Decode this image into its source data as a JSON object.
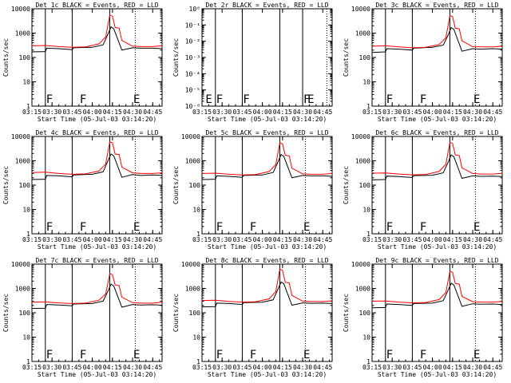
{
  "figure": {
    "x_tick_labels": [
      "03:15",
      "03:30",
      "03:45",
      "04:00",
      "04:15",
      "04:30",
      "04:45"
    ],
    "x_tick_minutes": [
      195,
      210,
      225,
      240,
      255,
      270,
      285
    ],
    "xlim_minutes": [
      195,
      292
    ],
    "xlabel": "Start Time (05-Jul-03 03:14:20)",
    "ylabel": "Counts/sec",
    "black_series_name": "Events",
    "red_series_name": "LLD",
    "colors": {
      "events": "#000000",
      "lld": "#ff0000",
      "axis": "#000000"
    }
  },
  "chart_data": [
    {
      "type": "line",
      "title": "Det 1c BLACK = Events, RED = LLD",
      "yscale": "log",
      "ylim": [
        1,
        10000
      ],
      "y_tick_labels": [
        "1",
        "10",
        "100",
        "1000",
        "10000"
      ],
      "solid_markers": [
        205,
        225,
        253
      ],
      "dotted_markers": [
        272
      ],
      "flag_letters": [
        {
          "x": 205,
          "text": "F"
        },
        {
          "x": 230,
          "text": "F"
        },
        {
          "x": 270,
          "text": "E"
        }
      ],
      "series": [
        {
          "name": "Events",
          "x": [
            195,
            205,
            206,
            215,
            225,
            226,
            240,
            248,
            252,
            254,
            256,
            262,
            270,
            276,
            285,
            292
          ],
          "values": [
            170,
            175,
            240,
            230,
            210,
            250,
            260,
            330,
            1000,
            1800,
            1500,
            200,
            250,
            240,
            240,
            230
          ]
        },
        {
          "name": "LLD",
          "x": [
            195,
            205,
            215,
            225,
            235,
            245,
            250,
            253,
            255,
            257,
            260,
            262,
            270,
            276,
            285,
            292
          ],
          "values": [
            300,
            310,
            280,
            260,
            270,
            360,
            700,
            5500,
            5000,
            1700,
            1600,
            500,
            290,
            280,
            280,
            300
          ]
        }
      ]
    },
    {
      "type": "line",
      "title": "Det 2r BLACK = Events, RED = LLD",
      "yscale": "log",
      "ylim": [
        1e-06,
        1
      ],
      "y_tick_labels": [
        "10⁻⁶",
        "10⁻⁵",
        "10⁻⁴",
        "10⁻³",
        "10⁻²",
        "10⁻¹",
        "10⁰"
      ],
      "solid_markers": [
        205,
        225,
        253,
        270
      ],
      "dotted_markers": [
        288
      ],
      "flag_letters": [
        {
          "x": 197,
          "text": "E"
        },
        {
          "x": 205,
          "text": "F"
        },
        {
          "x": 225,
          "text": "F"
        },
        {
          "x": 270,
          "text": "F"
        },
        {
          "x": 273,
          "text": "E"
        }
      ],
      "series": []
    },
    {
      "type": "line",
      "title": "Det 3c BLACK = Events, RED = LLD",
      "yscale": "log",
      "ylim": [
        1,
        10000
      ],
      "y_tick_labels": [
        "1",
        "10",
        "100",
        "1000",
        "10000"
      ],
      "solid_markers": [
        205,
        225,
        253
      ],
      "dotted_markers": [
        272
      ],
      "flag_letters": [
        {
          "x": 205,
          "text": "F"
        },
        {
          "x": 230,
          "text": "F"
        },
        {
          "x": 270,
          "text": "E"
        }
      ],
      "series": [
        {
          "name": "Events",
          "x": [
            195,
            205,
            206,
            215,
            225,
            226,
            240,
            248,
            252,
            254,
            256,
            262,
            270,
            276,
            285,
            292
          ],
          "values": [
            160,
            170,
            230,
            220,
            200,
            240,
            260,
            320,
            900,
            1700,
            1400,
            180,
            230,
            220,
            230,
            220
          ]
        },
        {
          "name": "LLD",
          "x": [
            195,
            205,
            215,
            225,
            235,
            245,
            250,
            253,
            255,
            257,
            260,
            262,
            270,
            276,
            285,
            292
          ],
          "values": [
            290,
            300,
            270,
            250,
            260,
            340,
            650,
            5200,
            4800,
            1600,
            1500,
            480,
            280,
            270,
            270,
            290
          ]
        }
      ]
    },
    {
      "type": "line",
      "title": "Det 4c BLACK = Events, RED = LLD",
      "yscale": "log",
      "ylim": [
        1,
        10000
      ],
      "y_tick_labels": [
        "1",
        "10",
        "100",
        "1000",
        "10000"
      ],
      "solid_markers": [
        205,
        225,
        253
      ],
      "dotted_markers": [
        272
      ],
      "flag_letters": [
        {
          "x": 205,
          "text": "F"
        },
        {
          "x": 230,
          "text": "F"
        },
        {
          "x": 270,
          "text": "E"
        }
      ],
      "series": [
        {
          "name": "Events",
          "x": [
            195,
            205,
            206,
            215,
            225,
            226,
            240,
            248,
            252,
            254,
            256,
            262,
            270,
            276,
            285,
            292
          ],
          "values": [
            170,
            175,
            250,
            240,
            220,
            260,
            280,
            350,
            1100,
            1900,
            1600,
            210,
            270,
            250,
            260,
            250
          ]
        },
        {
          "name": "LLD",
          "x": [
            195,
            205,
            215,
            225,
            235,
            245,
            250,
            253,
            255,
            257,
            260,
            262,
            270,
            276,
            285,
            292
          ],
          "values": [
            330,
            340,
            300,
            280,
            290,
            380,
            750,
            6000,
            5500,
            1900,
            1800,
            550,
            320,
            300,
            300,
            320
          ]
        }
      ]
    },
    {
      "type": "line",
      "title": "Det 5c BLACK = Events, RED = LLD",
      "yscale": "log",
      "ylim": [
        1,
        10000
      ],
      "y_tick_labels": [
        "1",
        "10",
        "100",
        "1000",
        "10000"
      ],
      "solid_markers": [
        205,
        225,
        253
      ],
      "dotted_markers": [
        272
      ],
      "flag_letters": [
        {
          "x": 205,
          "text": "F"
        },
        {
          "x": 230,
          "text": "F"
        },
        {
          "x": 270,
          "text": "E"
        }
      ],
      "series": [
        {
          "name": "Events",
          "x": [
            195,
            205,
            206,
            215,
            225,
            226,
            240,
            248,
            252,
            254,
            256,
            262,
            270,
            276,
            285,
            292
          ],
          "values": [
            170,
            175,
            240,
            230,
            210,
            250,
            260,
            330,
            1000,
            1800,
            1500,
            200,
            250,
            240,
            240,
            230
          ]
        },
        {
          "name": "LLD",
          "x": [
            195,
            205,
            215,
            225,
            235,
            245,
            250,
            253,
            255,
            257,
            260,
            262,
            270,
            276,
            285,
            292
          ],
          "values": [
            300,
            310,
            280,
            260,
            270,
            360,
            700,
            5500,
            5000,
            1700,
            1600,
            500,
            290,
            280,
            280,
            300
          ]
        }
      ]
    },
    {
      "type": "line",
      "title": "Det 6c BLACK = Events, RED = LLD",
      "yscale": "log",
      "ylim": [
        1,
        10000
      ],
      "y_tick_labels": [
        "1",
        "10",
        "100",
        "1000",
        "10000"
      ],
      "solid_markers": [
        205,
        225,
        253
      ],
      "dotted_markers": [
        272
      ],
      "flag_letters": [
        {
          "x": 205,
          "text": "F"
        },
        {
          "x": 230,
          "text": "F"
        },
        {
          "x": 270,
          "text": "E"
        }
      ],
      "series": [
        {
          "name": "Events",
          "x": [
            195,
            205,
            206,
            215,
            225,
            226,
            240,
            248,
            252,
            254,
            256,
            262,
            270,
            276,
            285,
            292
          ],
          "values": [
            165,
            170,
            235,
            225,
            205,
            245,
            255,
            320,
            950,
            1750,
            1450,
            190,
            240,
            230,
            235,
            225
          ]
        },
        {
          "name": "LLD",
          "x": [
            195,
            205,
            215,
            225,
            235,
            245,
            250,
            253,
            255,
            257,
            260,
            262,
            270,
            276,
            285,
            292
          ],
          "values": [
            310,
            315,
            285,
            265,
            275,
            365,
            720,
            5700,
            5200,
            1750,
            1650,
            510,
            300,
            285,
            285,
            305
          ]
        }
      ]
    },
    {
      "type": "line",
      "title": "Det 7c BLACK = Events, RED = LLD",
      "yscale": "log",
      "ylim": [
        1,
        10000
      ],
      "y_tick_labels": [
        "1",
        "10",
        "100",
        "1000",
        "10000"
      ],
      "solid_markers": [
        205,
        225,
        253
      ],
      "dotted_markers": [
        272
      ],
      "flag_letters": [
        {
          "x": 205,
          "text": "F"
        },
        {
          "x": 230,
          "text": "F"
        },
        {
          "x": 270,
          "text": "E"
        }
      ],
      "series": [
        {
          "name": "Events",
          "x": [
            195,
            205,
            206,
            215,
            225,
            226,
            240,
            248,
            252,
            254,
            256,
            262,
            270,
            276,
            285,
            292
          ],
          "values": [
            150,
            155,
            220,
            210,
            195,
            230,
            240,
            300,
            850,
            1500,
            1250,
            170,
            220,
            210,
            215,
            205
          ]
        },
        {
          "name": "LLD",
          "x": [
            195,
            205,
            215,
            225,
            235,
            245,
            250,
            253,
            255,
            257,
            260,
            262,
            270,
            276,
            285,
            292
          ],
          "values": [
            270,
            280,
            255,
            240,
            250,
            330,
            600,
            4000,
            3700,
            1400,
            1300,
            440,
            260,
            250,
            250,
            270
          ]
        }
      ]
    },
    {
      "type": "line",
      "title": "Det 8c BLACK = Events, RED = LLD",
      "yscale": "log",
      "ylim": [
        1,
        10000
      ],
      "y_tick_labels": [
        "1",
        "10",
        "100",
        "1000",
        "10000"
      ],
      "solid_markers": [
        205,
        225,
        253
      ],
      "dotted_markers": [
        272
      ],
      "flag_letters": [
        {
          "x": 205,
          "text": "F"
        },
        {
          "x": 230,
          "text": "F"
        },
        {
          "x": 270,
          "text": "E"
        }
      ],
      "series": [
        {
          "name": "Events",
          "x": [
            195,
            205,
            206,
            215,
            225,
            226,
            240,
            248,
            252,
            254,
            256,
            262,
            270,
            276,
            285,
            292
          ],
          "values": [
            175,
            180,
            250,
            240,
            220,
            260,
            270,
            340,
            1050,
            1850,
            1550,
            205,
            255,
            245,
            250,
            240
          ]
        },
        {
          "name": "LLD",
          "x": [
            195,
            205,
            215,
            225,
            235,
            245,
            250,
            253,
            255,
            257,
            260,
            262,
            270,
            276,
            285,
            292
          ],
          "values": [
            320,
            330,
            295,
            275,
            285,
            375,
            740,
            6200,
            5600,
            1800,
            1700,
            520,
            300,
            290,
            290,
            310
          ]
        }
      ]
    },
    {
      "type": "line",
      "title": "Det 9c BLACK = Events, RED = LLD",
      "yscale": "log",
      "ylim": [
        1,
        10000
      ],
      "y_tick_labels": [
        "1",
        "10",
        "100",
        "1000",
        "10000"
      ],
      "solid_markers": [
        205,
        225,
        253
      ],
      "dotted_markers": [
        272
      ],
      "flag_letters": [
        {
          "x": 205,
          "text": "F"
        },
        {
          "x": 230,
          "text": "F"
        },
        {
          "x": 270,
          "text": "E"
        }
      ],
      "series": [
        {
          "name": "Events",
          "x": [
            195,
            205,
            206,
            215,
            225,
            226,
            240,
            248,
            252,
            254,
            256,
            262,
            270,
            276,
            285,
            292
          ],
          "values": [
            160,
            165,
            230,
            220,
            200,
            240,
            250,
            315,
            920,
            1650,
            1380,
            185,
            235,
            225,
            230,
            220
          ]
        },
        {
          "name": "LLD",
          "x": [
            195,
            205,
            215,
            225,
            235,
            245,
            250,
            253,
            255,
            257,
            260,
            262,
            270,
            276,
            285,
            292
          ],
          "values": [
            300,
            305,
            275,
            255,
            265,
            350,
            680,
            5000,
            4600,
            1600,
            1500,
            470,
            285,
            275,
            275,
            295
          ]
        }
      ]
    }
  ]
}
